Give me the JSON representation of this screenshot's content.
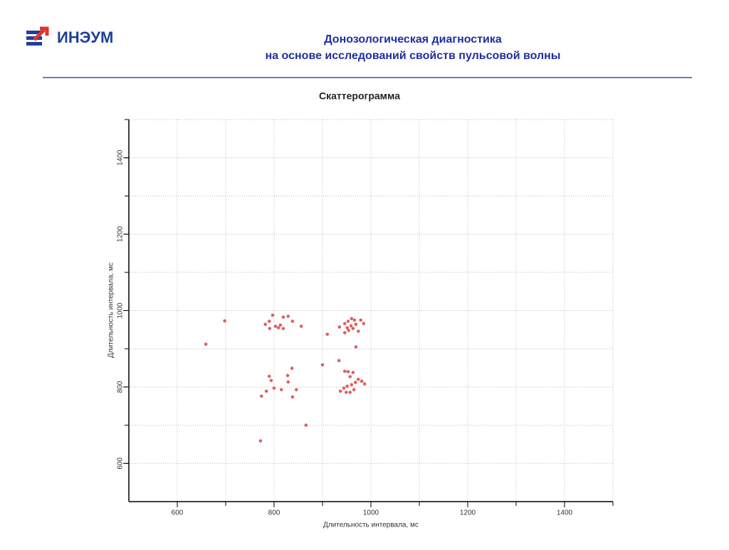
{
  "header": {
    "logo": "ИНЭУМ",
    "title": [
      "Донозологическая диагностика",
      "на основе исследований свойств пульсовой волны"
    ]
  },
  "chart_data": {
    "type": "scatter",
    "title": "Скаттерограмма",
    "x_label": "Длительность интервала, мс",
    "y_label": "Длительность интервала, мс",
    "color": "#d94545",
    "x": [
      698,
      659,
      797,
      819,
      829,
      782,
      790,
      803,
      809,
      813,
      819,
      838,
      856,
      791,
      935,
      910,
      946,
      953,
      959,
      963,
      969,
      974,
      979,
      985,
      946,
      954,
      966,
      960,
      969,
      951,
      790,
      794,
      774,
      784,
      800,
      815,
      828,
      829,
      837,
      838,
      846,
      866,
      772,
      900,
      934,
      946,
      953,
      957,
      963,
      937,
      944,
      951,
      960,
      968,
      974,
      957,
      965,
      981,
      987,
      949
    ],
    "values": [
      973,
      912,
      988,
      983,
      985,
      964,
      972,
      959,
      955,
      962,
      953,
      972,
      959,
      953,
      957,
      938,
      966,
      972,
      960,
      953,
      964,
      946,
      975,
      966,
      942,
      948,
      975,
      979,
      905,
      955,
      828,
      817,
      776,
      789,
      797,
      793,
      830,
      813,
      849,
      774,
      793,
      700,
      659,
      858,
      869,
      841,
      840,
      827,
      838,
      789,
      797,
      802,
      806,
      812,
      820,
      786,
      793,
      815,
      808,
      786
    ],
    "xlim": [
      500,
      1500
    ],
    "ylim": [
      500,
      1500
    ],
    "xticks": [
      600,
      800,
      1000,
      1200,
      1400
    ],
    "yticks": [
      600,
      800,
      1000,
      1200,
      1400
    ],
    "xgrid": [
      600,
      700,
      800,
      900,
      1000,
      1100,
      1200,
      1300,
      1400,
      1500
    ],
    "ygrid": [
      600,
      700,
      800,
      900,
      1000,
      1100,
      1200,
      1300,
      1400,
      1500
    ],
    "grid": true
  }
}
